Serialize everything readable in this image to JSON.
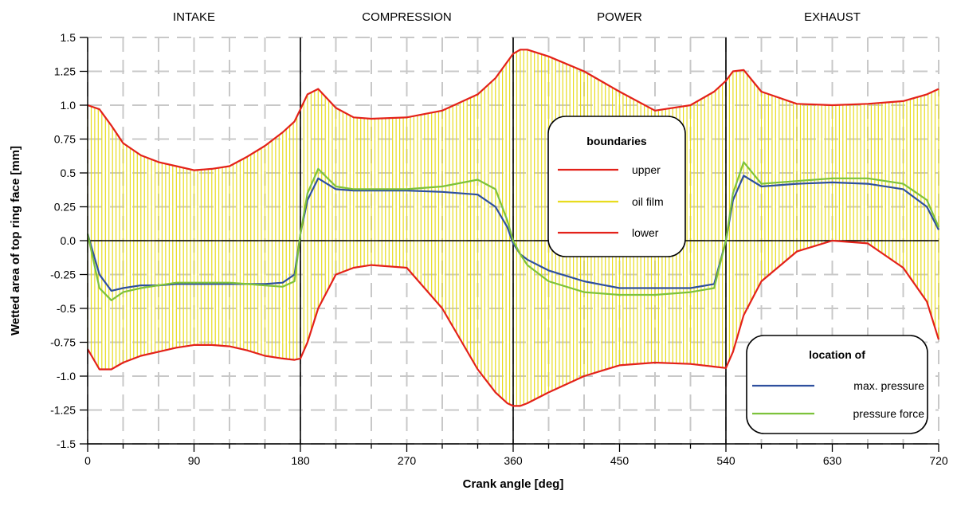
{
  "chart_data": {
    "type": "line",
    "title": "",
    "xlabel": "Crank angle [deg]",
    "ylabel": "Wetted area of top ring face [mm]",
    "xlim": [
      0,
      720
    ],
    "ylim": [
      -1.5,
      1.5
    ],
    "xticks": [
      0,
      90,
      180,
      270,
      360,
      450,
      540,
      630,
      720
    ],
    "xtick_labels": [
      "0",
      "90",
      "180",
      "270",
      "360",
      "450",
      "540",
      "630",
      "720"
    ],
    "yticks": [
      1.5,
      1.25,
      1.0,
      0.75,
      0.5,
      0.25,
      0.0,
      -0.25,
      -0.5,
      -0.75,
      -1.0,
      -1.25,
      -1.5
    ],
    "ytick_labels": [
      "1.5",
      "1.25",
      "1.0",
      "0.75",
      "0.5",
      "0.25",
      "0.0",
      "-0.25",
      "-0.5",
      "-0.75",
      "-1.0",
      "-1.25",
      "-1.5"
    ],
    "grid": true,
    "phases": [
      {
        "label": "INTAKE",
        "start": 0,
        "end": 180
      },
      {
        "label": "COMPRESSION",
        "start": 180,
        "end": 360
      },
      {
        "label": "POWER",
        "start": 360,
        "end": 540
      },
      {
        "label": "EXHAUST",
        "start": 540,
        "end": 720
      }
    ],
    "x": [
      0,
      10,
      20,
      30,
      45,
      60,
      75,
      90,
      105,
      120,
      135,
      150,
      165,
      175,
      180,
      186,
      195,
      210,
      225,
      240,
      270,
      300,
      330,
      345,
      355,
      360,
      366,
      372,
      390,
      420,
      450,
      480,
      510,
      530,
      540,
      546,
      555,
      570,
      600,
      630,
      660,
      690,
      710,
      720
    ],
    "series": [
      {
        "name": "upper",
        "color": "#e32119",
        "values": [
          1.0,
          0.97,
          0.85,
          0.72,
          0.63,
          0.58,
          0.55,
          0.52,
          0.53,
          0.55,
          0.62,
          0.7,
          0.8,
          0.88,
          0.97,
          1.08,
          1.12,
          0.98,
          0.91,
          0.9,
          0.91,
          0.96,
          1.08,
          1.2,
          1.32,
          1.38,
          1.41,
          1.41,
          1.36,
          1.25,
          1.1,
          0.96,
          1.0,
          1.1,
          1.18,
          1.25,
          1.26,
          1.1,
          1.01,
          1.0,
          1.01,
          1.03,
          1.08,
          1.12
        ]
      },
      {
        "name": "oil film",
        "color": "#e8dc1e",
        "values": [
          1.0,
          0.97,
          0.85,
          0.72,
          0.63,
          0.58,
          0.55,
          0.52,
          0.53,
          0.55,
          0.62,
          0.7,
          0.8,
          0.88,
          0.97,
          1.08,
          1.12,
          0.98,
          0.91,
          0.9,
          0.91,
          0.96,
          1.08,
          1.2,
          1.32,
          1.38,
          1.41,
          1.41,
          1.36,
          1.25,
          1.1,
          0.96,
          1.0,
          1.1,
          1.18,
          1.25,
          1.26,
          1.1,
          1.01,
          1.0,
          1.01,
          1.03,
          1.08,
          1.12
        ]
      },
      {
        "name": "lower",
        "color": "#e32119",
        "values": [
          -0.8,
          -0.95,
          -0.95,
          -0.9,
          -0.85,
          -0.82,
          -0.79,
          -0.77,
          -0.77,
          -0.78,
          -0.81,
          -0.85,
          -0.87,
          -0.88,
          -0.87,
          -0.75,
          -0.5,
          -0.25,
          -0.2,
          -0.18,
          -0.2,
          -0.5,
          -0.95,
          -1.12,
          -1.2,
          -1.22,
          -1.22,
          -1.2,
          -1.12,
          -1.0,
          -0.92,
          -0.9,
          -0.91,
          -0.93,
          -0.94,
          -0.82,
          -0.55,
          -0.3,
          -0.08,
          0.0,
          -0.02,
          -0.2,
          -0.45,
          -0.73
        ]
      },
      {
        "name": "max. pressure",
        "color": "#2e4f9e",
        "values": [
          0.05,
          -0.25,
          -0.37,
          -0.35,
          -0.33,
          -0.33,
          -0.32,
          -0.32,
          -0.32,
          -0.32,
          -0.32,
          -0.32,
          -0.31,
          -0.25,
          0.05,
          0.3,
          0.46,
          0.38,
          0.37,
          0.37,
          0.37,
          0.36,
          0.34,
          0.25,
          0.1,
          -0.02,
          -0.1,
          -0.14,
          -0.22,
          -0.3,
          -0.35,
          -0.35,
          -0.35,
          -0.32,
          0.0,
          0.3,
          0.48,
          0.4,
          0.42,
          0.43,
          0.42,
          0.38,
          0.25,
          0.08
        ]
      },
      {
        "name": "pressure force",
        "color": "#7dc23b",
        "values": [
          0.05,
          -0.35,
          -0.44,
          -0.38,
          -0.35,
          -0.33,
          -0.31,
          -0.31,
          -0.31,
          -0.31,
          -0.32,
          -0.33,
          -0.34,
          -0.3,
          0.05,
          0.35,
          0.53,
          0.4,
          0.38,
          0.38,
          0.38,
          0.4,
          0.45,
          0.38,
          0.15,
          0.0,
          -0.1,
          -0.18,
          -0.3,
          -0.38,
          -0.4,
          -0.4,
          -0.38,
          -0.35,
          0.0,
          0.35,
          0.58,
          0.42,
          0.44,
          0.46,
          0.46,
          0.42,
          0.3,
          0.1
        ]
      }
    ],
    "legends": [
      {
        "title": "boundaries",
        "placement": "center-right",
        "entries": [
          "upper",
          "oil film",
          "lower"
        ]
      },
      {
        "title": "location of",
        "placement": "bottom-right",
        "entries": [
          "max. pressure",
          "pressure force"
        ]
      }
    ]
  }
}
